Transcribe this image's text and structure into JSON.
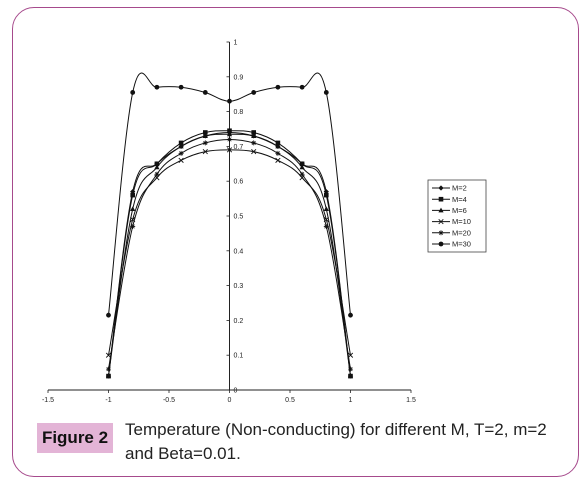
{
  "caption": {
    "label": "Figure 2",
    "text": "Temperature (Non-conducting) for different M, T=2, m=2 and Beta=0.01."
  },
  "chart_data": {
    "type": "line",
    "title": "",
    "xlabel": "",
    "ylabel": "",
    "xlim": [
      -1.5,
      1.5
    ],
    "ylim": [
      0,
      1
    ],
    "x_ticks": [
      "-1.5",
      "-1",
      "-0.5",
      "0",
      "0.5",
      "1",
      "1.5"
    ],
    "y_ticks": [
      "0",
      "0.1",
      "0.2",
      "0.3",
      "0.4",
      "0.5",
      "0.6",
      "0.7",
      "0.8",
      "0.9",
      "1"
    ],
    "grid": false,
    "legend_position": "right",
    "x": [
      -1,
      -0.8,
      -0.6,
      -0.4,
      -0.2,
      0,
      0.2,
      0.4,
      0.6,
      0.8,
      1
    ],
    "series": [
      {
        "name": "M=2",
        "marker": "diamond",
        "values": [
          0.04,
          0.57,
          0.65,
          0.7,
          0.73,
          0.74,
          0.73,
          0.7,
          0.65,
          0.57,
          0.04
        ]
      },
      {
        "name": "M=4",
        "marker": "square",
        "values": [
          0.04,
          0.56,
          0.65,
          0.71,
          0.74,
          0.745,
          0.74,
          0.71,
          0.65,
          0.56,
          0.04
        ]
      },
      {
        "name": "M=6",
        "marker": "triangle",
        "values": [
          0.04,
          0.52,
          0.64,
          0.7,
          0.73,
          0.735,
          0.73,
          0.7,
          0.64,
          0.52,
          0.04
        ]
      },
      {
        "name": "M=10",
        "marker": "x",
        "values": [
          0.1,
          0.49,
          0.61,
          0.66,
          0.685,
          0.69,
          0.685,
          0.66,
          0.61,
          0.49,
          0.1
        ]
      },
      {
        "name": "M=20",
        "marker": "star",
        "values": [
          0.06,
          0.47,
          0.62,
          0.68,
          0.71,
          0.72,
          0.71,
          0.68,
          0.62,
          0.47,
          0.06
        ]
      },
      {
        "name": "M=30",
        "marker": "circle",
        "values": [
          0.215,
          0.855,
          0.87,
          0.87,
          0.855,
          0.83,
          0.855,
          0.87,
          0.87,
          0.855,
          0.215
        ]
      }
    ]
  }
}
